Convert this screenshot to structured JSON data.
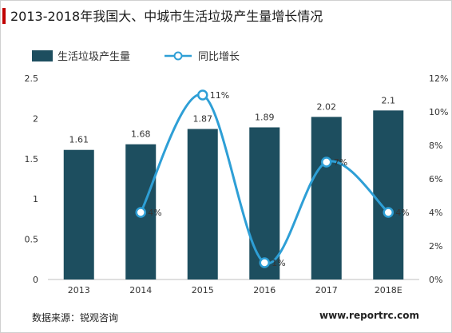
{
  "chart_data": {
    "type": "bar",
    "title": "2013-2018年我国大、中城市生活垃圾产生量增长情况",
    "categories": [
      "2013",
      "2014",
      "2015",
      "2016",
      "2017",
      "2018E"
    ],
    "series": [
      {
        "name": "生活垃圾产生量",
        "type": "bar",
        "axis": "left",
        "values": [
          1.61,
          1.68,
          1.87,
          1.89,
          2.02,
          2.1
        ],
        "labels": [
          "1.61",
          "1.68",
          "1.87",
          "1.89",
          "2.02",
          "2.1"
        ],
        "color": "#1d4e5f"
      },
      {
        "name": "同比增长",
        "type": "line",
        "axis": "right",
        "values": [
          null,
          4,
          11,
          1,
          7,
          4
        ],
        "labels": [
          "",
          "4%",
          "11%",
          "1%",
          "7%",
          "4%"
        ],
        "color": "#2e9fd6"
      }
    ],
    "y_left": {
      "min": 0,
      "max": 2.5,
      "step": 0.5,
      "ticks": [
        "0",
        "0.5",
        "1",
        "1.5",
        "2",
        "2.5"
      ]
    },
    "y_right": {
      "min": 0,
      "max": 12,
      "step": 2,
      "ticks": [
        "0%",
        "2%",
        "4%",
        "6%",
        "8%",
        "10%",
        "12%"
      ]
    },
    "grid": false,
    "legend_position": "top-left"
  },
  "footer": {
    "source": "数据来源：锐观咨询",
    "website": "www.reportrc.com"
  },
  "colors": {
    "accent": "#c00000",
    "bar": "#1d4e5f",
    "line": "#2e9fd6"
  }
}
